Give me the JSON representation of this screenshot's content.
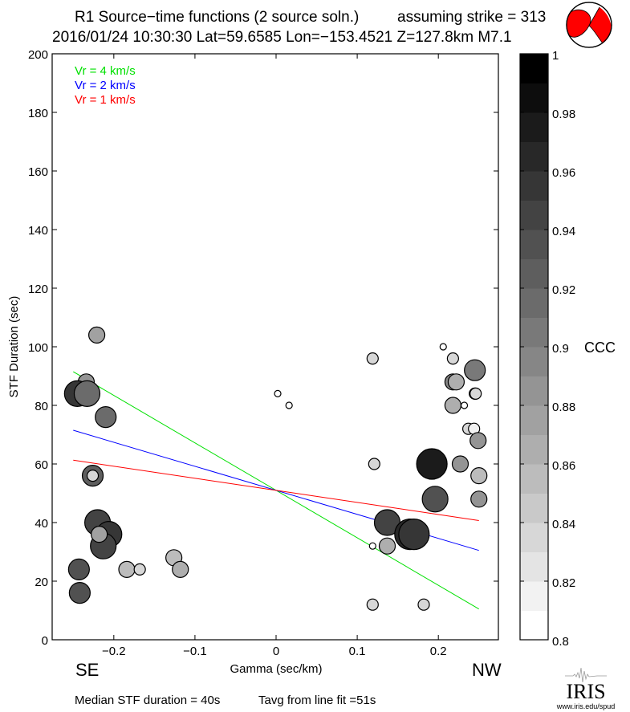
{
  "header": {
    "title": "R1 Source−time functions (2 source soln.)",
    "strike": "assuming strike = 313",
    "event_line": "2016/01/24 10:30:30  Lat=59.6585 Lon=−153.4521  Z=127.8km  M7.1"
  },
  "footer": {
    "median": "Median STF duration = 40s",
    "tavg": "Tavg from line fit =51s",
    "left_dir": "SE",
    "right_dir": "NW",
    "logo_text": "IRIS",
    "logo_url_text": "www.iris.edu/spud"
  },
  "colors": {
    "vr4": "#00e000",
    "vr2": "#0000ff",
    "vr1": "#ff0000",
    "beachball": "#ff0000"
  },
  "chart_data": {
    "type": "scatter",
    "title": "R1 Source−time functions (2 source soln.)",
    "xlabel": "Gamma (sec/km)",
    "ylabel": "STF Duration (sec)",
    "xlim": [
      -0.276,
      0.274
    ],
    "ylim": [
      0,
      200
    ],
    "xticks": [
      -0.2,
      -0.1,
      0,
      0.1,
      0.2
    ],
    "xtick_labels": [
      "−0.2",
      "−0.1",
      "0",
      "0.1",
      "0.2"
    ],
    "yticks": [
      0,
      20,
      40,
      60,
      80,
      100,
      120,
      140,
      160,
      180,
      200
    ],
    "ytick_labels": [
      "0",
      "20",
      "40",
      "60",
      "80",
      "100",
      "120",
      "140",
      "160",
      "180",
      "200"
    ],
    "grid": false,
    "legend": {
      "placement": "top-left",
      "entries": [
        {
          "label": "Vr = 4 km/s",
          "color_key": "vr4"
        },
        {
          "label": "Vr = 2 km/s",
          "color_key": "vr2"
        },
        {
          "label": "Vr = 1 km/s",
          "color_key": "vr1"
        }
      ]
    },
    "lines": [
      {
        "name": "Vr = 4 km/s",
        "color_key": "vr4",
        "x": [
          -0.25,
          0.25
        ],
        "y": [
          91.5,
          10.5
        ]
      },
      {
        "name": "Vr = 2 km/s",
        "color_key": "vr2",
        "x": [
          -0.25,
          0.25
        ],
        "y": [
          71.5,
          30.5
        ]
      },
      {
        "name": "Vr = 1 km/s",
        "color_key": "vr1",
        "x": [
          -0.25,
          0.25
        ],
        "y": [
          61.3,
          40.7
        ]
      }
    ],
    "colorbar": {
      "label": "CCC",
      "range": [
        0.8,
        1.0
      ],
      "step": 0.01,
      "ticks": [
        0.8,
        0.82,
        0.84,
        0.86,
        0.88,
        0.9,
        0.92,
        0.94,
        0.96,
        0.98,
        1
      ],
      "tick_labels": [
        "0.8",
        "0.82",
        "0.84",
        "0.86",
        "0.88",
        "0.9",
        "0.92",
        "0.94",
        "0.96",
        "0.98",
        "1"
      ]
    },
    "points_note": "size encodes relative weight (larger = higher CCC); color encodes CCC",
    "points": [
      {
        "x": -0.221,
        "y": 104,
        "ccc": 0.875,
        "size": 2
      },
      {
        "x": -0.234,
        "y": 88,
        "ccc": 0.885,
        "size": 2
      },
      {
        "x": -0.245,
        "y": 84,
        "ccc": 0.955,
        "size": 4
      },
      {
        "x": -0.233,
        "y": 84,
        "ccc": 0.915,
        "size": 4
      },
      {
        "x": -0.21,
        "y": 76,
        "ccc": 0.915,
        "size": 3
      },
      {
        "x": -0.226,
        "y": 56,
        "ccc": 0.925,
        "size": 3
      },
      {
        "x": -0.226,
        "y": 56,
        "ccc": 0.835,
        "size": 1
      },
      {
        "x": -0.22,
        "y": 40,
        "ccc": 0.945,
        "size": 4
      },
      {
        "x": -0.206,
        "y": 36,
        "ccc": 0.955,
        "size": 4
      },
      {
        "x": -0.213,
        "y": 32,
        "ccc": 0.945,
        "size": 4
      },
      {
        "x": -0.218,
        "y": 36,
        "ccc": 0.875,
        "size": 2
      },
      {
        "x": -0.243,
        "y": 24,
        "ccc": 0.935,
        "size": 3
      },
      {
        "x": -0.242,
        "y": 16,
        "ccc": 0.935,
        "size": 3
      },
      {
        "x": -0.184,
        "y": 24,
        "ccc": 0.855,
        "size": 2
      },
      {
        "x": -0.168,
        "y": 24,
        "ccc": 0.835,
        "size": 1
      },
      {
        "x": -0.126,
        "y": 28,
        "ccc": 0.855,
        "size": 2
      },
      {
        "x": -0.118,
        "y": 24,
        "ccc": 0.865,
        "size": 2
      },
      {
        "x": 0.002,
        "y": 84,
        "ccc": 0.805,
        "size": 0
      },
      {
        "x": 0.016,
        "y": 80,
        "ccc": 0.805,
        "size": 0
      },
      {
        "x": 0.119,
        "y": 96,
        "ccc": 0.835,
        "size": 1
      },
      {
        "x": 0.121,
        "y": 60,
        "ccc": 0.835,
        "size": 1
      },
      {
        "x": 0.119,
        "y": 32,
        "ccc": 0.805,
        "size": 0
      },
      {
        "x": 0.119,
        "y": 12,
        "ccc": 0.835,
        "size": 1
      },
      {
        "x": 0.137,
        "y": 40,
        "ccc": 0.945,
        "size": 4
      },
      {
        "x": 0.137,
        "y": 32,
        "ccc": 0.865,
        "size": 2
      },
      {
        "x": 0.165,
        "y": 36,
        "ccc": 0.965,
        "size": 5
      },
      {
        "x": 0.17,
        "y": 36,
        "ccc": 0.955,
        "size": 5
      },
      {
        "x": 0.182,
        "y": 12,
        "ccc": 0.835,
        "size": 1
      },
      {
        "x": 0.192,
        "y": 60,
        "ccc": 0.975,
        "size": 5
      },
      {
        "x": 0.196,
        "y": 48,
        "ccc": 0.935,
        "size": 4
      },
      {
        "x": 0.206,
        "y": 100,
        "ccc": 0.805,
        "size": 0
      },
      {
        "x": 0.218,
        "y": 96,
        "ccc": 0.835,
        "size": 1
      },
      {
        "x": 0.218,
        "y": 88,
        "ccc": 0.895,
        "size": 2
      },
      {
        "x": 0.222,
        "y": 88,
        "ccc": 0.865,
        "size": 2
      },
      {
        "x": 0.218,
        "y": 80,
        "ccc": 0.865,
        "size": 2
      },
      {
        "x": 0.232,
        "y": 80,
        "ccc": 0.805,
        "size": 0
      },
      {
        "x": 0.227,
        "y": 60,
        "ccc": 0.885,
        "size": 2
      },
      {
        "x": 0.237,
        "y": 72,
        "ccc": 0.835,
        "size": 1
      },
      {
        "x": 0.244,
        "y": 72,
        "ccc": 0.815,
        "size": 1
      },
      {
        "x": 0.245,
        "y": 92,
        "ccc": 0.905,
        "size": 3
      },
      {
        "x": 0.245,
        "y": 84,
        "ccc": 0.955,
        "size": 1
      },
      {
        "x": 0.246,
        "y": 84,
        "ccc": 0.835,
        "size": 1
      },
      {
        "x": 0.249,
        "y": 68,
        "ccc": 0.885,
        "size": 2
      },
      {
        "x": 0.25,
        "y": 56,
        "ccc": 0.855,
        "size": 2
      },
      {
        "x": 0.25,
        "y": 48,
        "ccc": 0.885,
        "size": 2
      }
    ]
  }
}
